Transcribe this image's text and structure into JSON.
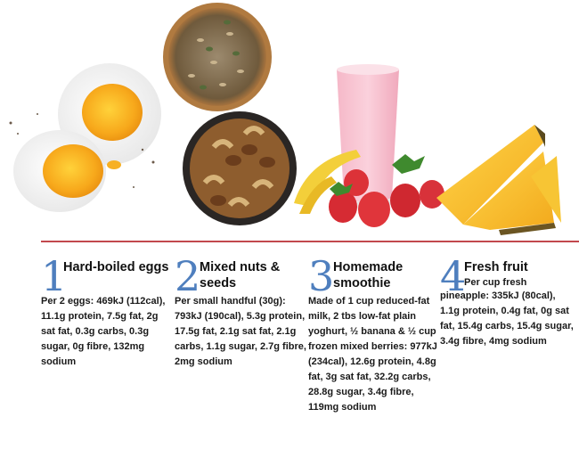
{
  "colors": {
    "number": "#4f7fbe",
    "divider": "#c2484d",
    "text": "#1a1a1a"
  },
  "images": {
    "eggs": "hard-boiled-eggs-photo",
    "seeds": "seed-mix-bowl-photo",
    "nuts": "mixed-nuts-bowl-photo",
    "smoothie": "pink-smoothie-glass-photo",
    "banana": "banana-photo",
    "berries": "strawberries-photo",
    "pineapple": "pineapple-slices-photo"
  },
  "items": [
    {
      "number": "1",
      "title": "Hard-boiled eggs",
      "body": "Per 2 eggs: 469kJ (112cal), 11.1g protein, 7.5g fat, 2g sat fat, 0.3g carbs, 0.3g sugar, 0g fibre, 132mg sodium"
    },
    {
      "number": "2",
      "title": "Mixed nuts & seeds",
      "body": "Per small handful (30g): 793kJ (190cal), 5.3g protein, 17.5g fat, 2.1g sat fat, 2.1g carbs, 1.1g sugar, 2.7g fibre, 2mg sodium"
    },
    {
      "number": "3",
      "title": "Homemade smoothie",
      "body": "Made of 1 cup reduced-fat milk, 2 tbs low-fat plain yoghurt, ½ banana & ½ cup frozen mixed berries: 977kJ (234cal), 12.6g protein, 4.8g fat, 3g sat fat, 32.2g carbs, 28.8g sugar, 3.4g fibre, 119mg sodium"
    },
    {
      "number": "4",
      "title": "Fresh fruit",
      "lead": "Per cup fresh",
      "body": "pineapple: 335kJ (80cal), 1.1g protein, 0.4g fat, 0g sat fat, 15.4g carbs, 15.4g sugar, 3.4g fibre, 4mg sodium"
    }
  ]
}
